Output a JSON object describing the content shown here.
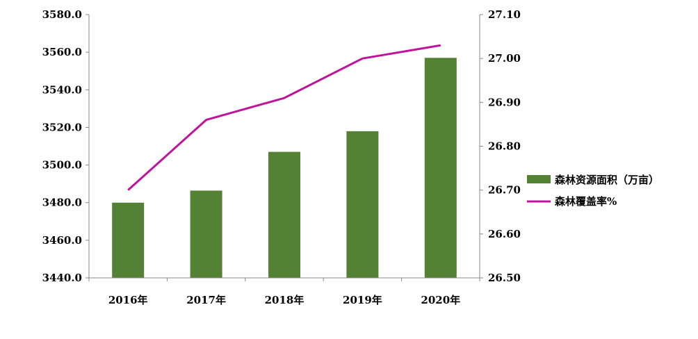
{
  "chart_data": {
    "type": "bar",
    "categories": [
      "2016年",
      "2017年",
      "2018年",
      "2019年",
      "2020年"
    ],
    "series": [
      {
        "name": "森林资源面积（万亩）",
        "type": "bar",
        "axis": "left",
        "color": "#548235",
        "values": [
          3480.0,
          3486.4,
          3507.0,
          3518.0,
          3557.0
        ]
      },
      {
        "name": "森林覆盖率%",
        "type": "line",
        "axis": "right",
        "color": "#C0139C",
        "values": [
          26.7,
          26.86,
          26.91,
          27.0,
          27.03
        ]
      }
    ],
    "y_left": {
      "range": [
        3440,
        3580
      ],
      "ticks": [
        "3440.0",
        "3460.0",
        "3480.0",
        "3500.0",
        "3520.0",
        "3540.0",
        "3560.0",
        "3580.0"
      ]
    },
    "y_right": {
      "range": [
        26.5,
        27.1
      ],
      "ticks": [
        "26.50",
        "26.60",
        "26.70",
        "26.80",
        "26.90",
        "27.00",
        "27.10"
      ]
    },
    "grid": false,
    "legend": "right"
  }
}
